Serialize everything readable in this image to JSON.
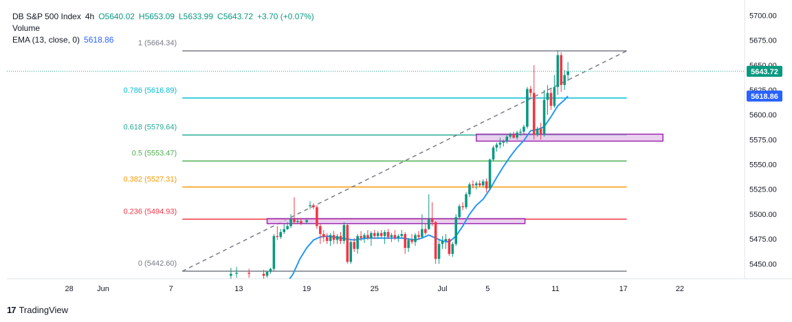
{
  "header": {
    "symbol": "DB S&P 500 Index",
    "timeframe": "4h",
    "open": "O5640.02",
    "high": "H5653.09",
    "low": "L5633.99",
    "close": "C5643.72",
    "change": "+3.70 (+0.07%)",
    "volume_label": "Volume",
    "ema_label": "EMA (13, close, 0)",
    "ema_value": "5618.86"
  },
  "branding": {
    "name": "TradingView"
  },
  "colors": {
    "up": "#089981",
    "down": "#f23645",
    "ema": "#2196f3",
    "fib_1": "#787b86",
    "fib_0786": "#00bcd4",
    "fib_0618": "#22ab94",
    "fib_05": "#4caf50",
    "fib_0382": "#ff9800",
    "fib_0236": "#f23645",
    "fib_0": "#787b86",
    "zone_fill": "#e1bee7",
    "zone_border": "#9c27b0",
    "price_badge": "#089981",
    "ema_badge": "#2962ff"
  },
  "chart_data": {
    "type": "candlestick",
    "y_axis": {
      "min": 5435,
      "max": 5710,
      "ticks": [
        5450,
        5475,
        5500,
        5525,
        5550,
        5575,
        5600,
        5625,
        5650,
        5675,
        5700
      ],
      "tick_labels": [
        "5450.00",
        "5475.00",
        "5500.00",
        "5525.00",
        "5550.00",
        "5575.00",
        "5600.00",
        "5625.00",
        "5650.00",
        "5675.00",
        "5700.00"
      ]
    },
    "x_axis": {
      "ticks": [
        {
          "label": "28",
          "day": -3
        },
        {
          "label": "Jun",
          "day": 0
        },
        {
          "label": "7",
          "day": 6
        },
        {
          "label": "13",
          "day": 12
        },
        {
          "label": "19",
          "day": 18
        },
        {
          "label": "25",
          "day": 24
        },
        {
          "label": "Jul",
          "day": 30
        },
        {
          "label": "5",
          "day": 34
        },
        {
          "label": "11",
          "day": 40
        },
        {
          "label": "17",
          "day": 46
        },
        {
          "label": "22",
          "day": 51
        }
      ]
    },
    "last_price": {
      "value": 5643.72,
      "label": "5643.72"
    },
    "ema_last": {
      "value": 5618.86,
      "label": "5618.86"
    },
    "fib_levels": [
      {
        "ratio": "1",
        "label": "1 (5664.34)",
        "price": 5664.34,
        "color_key": "fib_1"
      },
      {
        "ratio": "0.786",
        "label": "0.786 (5616.89)",
        "price": 5616.89,
        "color_key": "fib_0786"
      },
      {
        "ratio": "0.618",
        "label": "0.618 (5579.64)",
        "price": 5579.64,
        "color_key": "fib_0618"
      },
      {
        "ratio": "0.5",
        "label": "0.5 (5553.47)",
        "price": 5553.47,
        "color_key": "fib_05"
      },
      {
        "ratio": "0.382",
        "label": "0.382 (5527.31)",
        "price": 5527.31,
        "color_key": "fib_0382"
      },
      {
        "ratio": "0.236",
        "label": "0.236 (5494.93)",
        "price": 5494.93,
        "color_key": "fib_0236"
      },
      {
        "ratio": "0",
        "label": "0 (5442.60)",
        "price": 5442.6,
        "color_key": "fib_0"
      }
    ],
    "fib_range_days": [
      7,
      46.3
    ],
    "trend_line": {
      "from": {
        "day": 7,
        "price": 5442.6
      },
      "to": {
        "day": 46.3,
        "price": 5664.34
      }
    },
    "zones": [
      {
        "day_start": 14.5,
        "day_end": 37.3,
        "price_top": 5495.5,
        "price_bottom": 5490.5
      },
      {
        "day_start": 33,
        "day_end": 49.5,
        "price_top": 5580.5,
        "price_bottom": 5573.5
      }
    ],
    "candles": [
      {
        "d": 11.3,
        "o": 5438,
        "h": 5446,
        "l": 5434,
        "c": 5440
      },
      {
        "d": 11.8,
        "o": 5440,
        "h": 5447,
        "l": 5436,
        "c": 5441
      },
      {
        "d": 12.9,
        "o": 5441,
        "h": 5445,
        "l": 5436,
        "c": 5440
      },
      {
        "d": 14.2,
        "o": 5440,
        "h": 5444,
        "l": 5434,
        "c": 5438
      },
      {
        "d": 14.5,
        "o": 5438,
        "h": 5443,
        "l": 5436,
        "c": 5442
      },
      {
        "d": 14.8,
        "o": 5442,
        "h": 5446,
        "l": 5440,
        "c": 5445
      },
      {
        "d": 15.1,
        "o": 5445,
        "h": 5480,
        "l": 5443,
        "c": 5478
      },
      {
        "d": 15.4,
        "o": 5478,
        "h": 5488,
        "l": 5474,
        "c": 5477
      },
      {
        "d": 15.7,
        "o": 5477,
        "h": 5485,
        "l": 5475,
        "c": 5482
      },
      {
        "d": 16.0,
        "o": 5482,
        "h": 5490,
        "l": 5480,
        "c": 5485
      },
      {
        "d": 16.3,
        "o": 5485,
        "h": 5492,
        "l": 5484,
        "c": 5488
      },
      {
        "d": 16.6,
        "o": 5488,
        "h": 5500,
        "l": 5486,
        "c": 5495
      },
      {
        "d": 16.9,
        "o": 5495,
        "h": 5517,
        "l": 5490,
        "c": 5492
      },
      {
        "d": 17.2,
        "o": 5492,
        "h": 5496,
        "l": 5490,
        "c": 5493
      },
      {
        "d": 17.5,
        "o": 5493,
        "h": 5496,
        "l": 5489,
        "c": 5491
      },
      {
        "d": 18.0,
        "o": 5492,
        "h": 5495,
        "l": 5490,
        "c": 5494
      },
      {
        "d": 18.3,
        "o": 5508,
        "h": 5513,
        "l": 5505,
        "c": 5509
      },
      {
        "d": 18.6,
        "o": 5509,
        "h": 5511,
        "l": 5505,
        "c": 5507
      },
      {
        "d": 18.9,
        "o": 5507,
        "h": 5509,
        "l": 5485,
        "c": 5488
      },
      {
        "d": 19.2,
        "o": 5488,
        "h": 5490,
        "l": 5470,
        "c": 5480
      },
      {
        "d": 19.5,
        "o": 5480,
        "h": 5484,
        "l": 5472,
        "c": 5477
      },
      {
        "d": 19.8,
        "o": 5477,
        "h": 5481,
        "l": 5470,
        "c": 5473
      },
      {
        "d": 20.1,
        "o": 5473,
        "h": 5481,
        "l": 5468,
        "c": 5479
      },
      {
        "d": 20.4,
        "o": 5479,
        "h": 5483,
        "l": 5470,
        "c": 5474
      },
      {
        "d": 20.7,
        "o": 5474,
        "h": 5480,
        "l": 5470,
        "c": 5478
      },
      {
        "d": 21.0,
        "o": 5478,
        "h": 5482,
        "l": 5470,
        "c": 5473
      },
      {
        "d": 21.3,
        "o": 5473,
        "h": 5492,
        "l": 5470,
        "c": 5489
      },
      {
        "d": 21.6,
        "o": 5489,
        "h": 5491,
        "l": 5450,
        "c": 5452
      },
      {
        "d": 21.9,
        "o": 5452,
        "h": 5474,
        "l": 5450,
        "c": 5472
      },
      {
        "d": 22.2,
        "o": 5472,
        "h": 5476,
        "l": 5462,
        "c": 5465
      },
      {
        "d": 22.5,
        "o": 5465,
        "h": 5480,
        "l": 5460,
        "c": 5478
      },
      {
        "d": 22.8,
        "o": 5478,
        "h": 5483,
        "l": 5473,
        "c": 5476
      },
      {
        "d": 23.1,
        "o": 5476,
        "h": 5481,
        "l": 5471,
        "c": 5479
      },
      {
        "d": 23.4,
        "o": 5479,
        "h": 5484,
        "l": 5474,
        "c": 5476
      },
      {
        "d": 23.7,
        "o": 5476,
        "h": 5483,
        "l": 5468,
        "c": 5481
      },
      {
        "d": 24.0,
        "o": 5481,
        "h": 5484,
        "l": 5475,
        "c": 5478
      },
      {
        "d": 24.3,
        "o": 5478,
        "h": 5483,
        "l": 5475,
        "c": 5481
      },
      {
        "d": 24.6,
        "o": 5481,
        "h": 5484,
        "l": 5476,
        "c": 5478
      },
      {
        "d": 24.9,
        "o": 5478,
        "h": 5484,
        "l": 5470,
        "c": 5482
      },
      {
        "d": 25.2,
        "o": 5482,
        "h": 5485,
        "l": 5475,
        "c": 5477
      },
      {
        "d": 25.5,
        "o": 5477,
        "h": 5481,
        "l": 5472,
        "c": 5479
      },
      {
        "d": 25.8,
        "o": 5479,
        "h": 5484,
        "l": 5474,
        "c": 5476
      },
      {
        "d": 26.1,
        "o": 5476,
        "h": 5480,
        "l": 5472,
        "c": 5478
      },
      {
        "d": 26.4,
        "o": 5478,
        "h": 5484,
        "l": 5476,
        "c": 5480
      },
      {
        "d": 26.7,
        "o": 5480,
        "h": 5482,
        "l": 5460,
        "c": 5466
      },
      {
        "d": 27.0,
        "o": 5466,
        "h": 5476,
        "l": 5462,
        "c": 5474
      },
      {
        "d": 27.3,
        "o": 5474,
        "h": 5480,
        "l": 5470,
        "c": 5472
      },
      {
        "d": 27.6,
        "o": 5472,
        "h": 5481,
        "l": 5468,
        "c": 5479
      },
      {
        "d": 27.9,
        "o": 5479,
        "h": 5483,
        "l": 5474,
        "c": 5477
      },
      {
        "d": 28.2,
        "o": 5477,
        "h": 5500,
        "l": 5476,
        "c": 5485
      },
      {
        "d": 28.5,
        "o": 5485,
        "h": 5491,
        "l": 5479,
        "c": 5481
      },
      {
        "d": 28.8,
        "o": 5485,
        "h": 5520,
        "l": 5484,
        "c": 5495
      },
      {
        "d": 29.1,
        "o": 5495,
        "h": 5512,
        "l": 5488,
        "c": 5492
      },
      {
        "d": 29.4,
        "o": 5492,
        "h": 5493,
        "l": 5450,
        "c": 5455
      },
      {
        "d": 29.7,
        "o": 5455,
        "h": 5475,
        "l": 5450,
        "c": 5470
      },
      {
        "d": 30.0,
        "o": 5470,
        "h": 5478,
        "l": 5465,
        "c": 5473
      },
      {
        "d": 30.3,
        "o": 5473,
        "h": 5480,
        "l": 5465,
        "c": 5475
      },
      {
        "d": 30.6,
        "o": 5475,
        "h": 5476,
        "l": 5458,
        "c": 5460
      },
      {
        "d": 30.9,
        "o": 5460,
        "h": 5472,
        "l": 5457,
        "c": 5470
      },
      {
        "d": 31.2,
        "o": 5470,
        "h": 5500,
        "l": 5468,
        "c": 5497
      },
      {
        "d": 31.5,
        "o": 5497,
        "h": 5510,
        "l": 5495,
        "c": 5508
      },
      {
        "d": 31.8,
        "o": 5508,
        "h": 5512,
        "l": 5504,
        "c": 5507
      },
      {
        "d": 32.1,
        "o": 5507,
        "h": 5522,
        "l": 5505,
        "c": 5520
      },
      {
        "d": 32.4,
        "o": 5520,
        "h": 5532,
        "l": 5517,
        "c": 5530
      },
      {
        "d": 32.7,
        "o": 5530,
        "h": 5534,
        "l": 5526,
        "c": 5529
      },
      {
        "d": 33.0,
        "o": 5529,
        "h": 5533,
        "l": 5525,
        "c": 5531
      },
      {
        "d": 33.3,
        "o": 5531,
        "h": 5534,
        "l": 5527,
        "c": 5529
      },
      {
        "d": 33.6,
        "o": 5529,
        "h": 5535,
        "l": 5527,
        "c": 5533
      },
      {
        "d": 33.9,
        "o": 5533,
        "h": 5536,
        "l": 5522,
        "c": 5526
      },
      {
        "d": 34.2,
        "o": 5526,
        "h": 5556,
        "l": 5524,
        "c": 5555
      },
      {
        "d": 34.5,
        "o": 5555,
        "h": 5569,
        "l": 5553,
        "c": 5567
      },
      {
        "d": 34.8,
        "o": 5567,
        "h": 5572,
        "l": 5563,
        "c": 5570
      },
      {
        "d": 35.1,
        "o": 5570,
        "h": 5577,
        "l": 5566,
        "c": 5572
      },
      {
        "d": 35.4,
        "o": 5572,
        "h": 5575,
        "l": 5568,
        "c": 5573
      },
      {
        "d": 35.7,
        "o": 5573,
        "h": 5580,
        "l": 5571,
        "c": 5578
      },
      {
        "d": 36.0,
        "o": 5578,
        "h": 5582,
        "l": 5576,
        "c": 5580
      },
      {
        "d": 36.3,
        "o": 5580,
        "h": 5583,
        "l": 5576,
        "c": 5577
      },
      {
        "d": 36.6,
        "o": 5577,
        "h": 5584,
        "l": 5575,
        "c": 5582
      },
      {
        "d": 36.9,
        "o": 5582,
        "h": 5586,
        "l": 5579,
        "c": 5583
      },
      {
        "d": 37.2,
        "o": 5583,
        "h": 5590,
        "l": 5581,
        "c": 5588
      },
      {
        "d": 37.5,
        "o": 5588,
        "h": 5628,
        "l": 5586,
        "c": 5626
      },
      {
        "d": 37.8,
        "o": 5626,
        "h": 5629,
        "l": 5618,
        "c": 5622
      },
      {
        "d": 38.1,
        "o": 5622,
        "h": 5650,
        "l": 5575,
        "c": 5580
      },
      {
        "d": 38.4,
        "o": 5580,
        "h": 5588,
        "l": 5578,
        "c": 5586
      },
      {
        "d": 38.7,
        "o": 5586,
        "h": 5592,
        "l": 5575,
        "c": 5581
      },
      {
        "d": 39.0,
        "o": 5581,
        "h": 5625,
        "l": 5578,
        "c": 5615
      },
      {
        "d": 39.3,
        "o": 5615,
        "h": 5630,
        "l": 5600,
        "c": 5622
      },
      {
        "d": 39.6,
        "o": 5622,
        "h": 5626,
        "l": 5605,
        "c": 5609
      },
      {
        "d": 39.9,
        "o": 5609,
        "h": 5640,
        "l": 5607,
        "c": 5628
      },
      {
        "d": 40.2,
        "o": 5628,
        "h": 5665,
        "l": 5620,
        "c": 5660
      },
      {
        "d": 40.5,
        "o": 5660,
        "h": 5663,
        "l": 5623,
        "c": 5630
      },
      {
        "d": 40.8,
        "o": 5630,
        "h": 5645,
        "l": 5625,
        "c": 5640
      },
      {
        "d": 41.1,
        "o": 5640.02,
        "h": 5653.09,
        "l": 5633.99,
        "c": 5643.72
      }
    ],
    "ema": [
      [
        16.2,
        5430
      ],
      [
        16.8,
        5440
      ],
      [
        17.4,
        5455
      ],
      [
        18.0,
        5466
      ],
      [
        18.6,
        5474
      ],
      [
        19.2,
        5477
      ],
      [
        19.8,
        5478
      ],
      [
        20.4,
        5477
      ],
      [
        21.0,
        5476
      ],
      [
        21.6,
        5475
      ],
      [
        22.2,
        5474
      ],
      [
        22.8,
        5475
      ],
      [
        23.4,
        5476
      ],
      [
        24.0,
        5476
      ],
      [
        24.6,
        5476
      ],
      [
        25.2,
        5476
      ],
      [
        25.8,
        5476
      ],
      [
        26.4,
        5476
      ],
      [
        27.0,
        5475
      ],
      [
        27.6,
        5474
      ],
      [
        28.2,
        5476
      ],
      [
        28.8,
        5479
      ],
      [
        29.4,
        5476
      ],
      [
        30.0,
        5473
      ],
      [
        30.6,
        5472
      ],
      [
        31.2,
        5478
      ],
      [
        31.8,
        5488
      ],
      [
        32.4,
        5500
      ],
      [
        33.0,
        5509
      ],
      [
        33.6,
        5515
      ],
      [
        34.2,
        5525
      ],
      [
        34.8,
        5537
      ],
      [
        35.4,
        5548
      ],
      [
        36.0,
        5558
      ],
      [
        36.6,
        5567
      ],
      [
        37.2,
        5574
      ],
      [
        37.8,
        5584
      ],
      [
        38.4,
        5585
      ],
      [
        39.0,
        5588
      ],
      [
        39.6,
        5598
      ],
      [
        40.2,
        5609
      ],
      [
        40.8,
        5615
      ],
      [
        41.1,
        5618.86
      ]
    ]
  }
}
